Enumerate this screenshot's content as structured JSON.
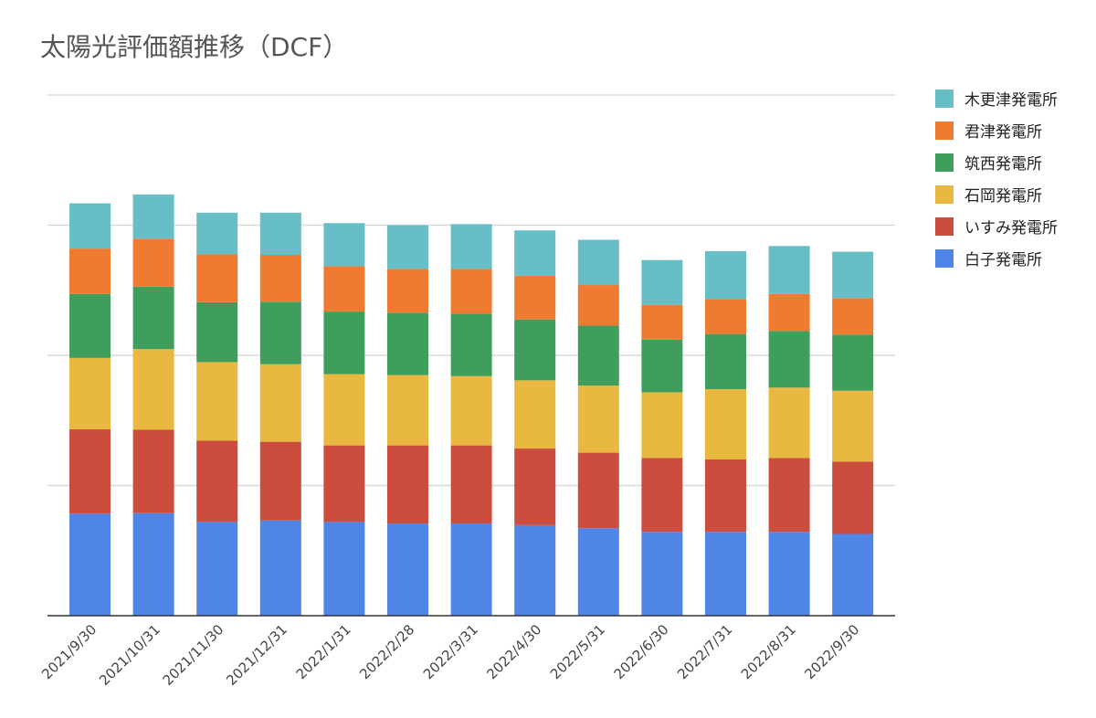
{
  "chart_data": {
    "type": "bar",
    "stacked": true,
    "title": "太陽光評価額推移（DCF）",
    "xlabel": "",
    "ylabel": "",
    "ylim": [
      0,
      100
    ],
    "grid": true,
    "legend_position": "right",
    "categories": [
      "2021/9/30",
      "2021/10/31",
      "2021/11/30",
      "2021/12/31",
      "2022/1/31",
      "2022/2/28",
      "2022/3/31",
      "2022/4/30",
      "2022/5/31",
      "2022/6/30",
      "2022/7/31",
      "2022/8/31",
      "2022/9/30"
    ],
    "series": [
      {
        "name": "白子発電所",
        "color": "#5085e8",
        "values": [
          19.6,
          19.7,
          18.0,
          18.3,
          18.0,
          17.7,
          17.7,
          17.4,
          16.8,
          16.1,
          16.1,
          16.1,
          15.7
        ]
      },
      {
        "name": "いすみ発電所",
        "color": "#cc4c3e",
        "values": [
          16.2,
          16.0,
          15.6,
          15.1,
          14.7,
          15.0,
          15.0,
          14.7,
          14.5,
          14.2,
          13.9,
          14.2,
          13.9
        ]
      },
      {
        "name": "石岡発電所",
        "color": "#e9b840",
        "values": [
          13.7,
          15.5,
          15.1,
          14.9,
          13.7,
          13.5,
          13.3,
          13.1,
          12.9,
          12.6,
          13.5,
          13.5,
          13.6
        ]
      },
      {
        "name": "筑西発電所",
        "color": "#409e5d",
        "values": [
          12.3,
          12.0,
          11.5,
          12.0,
          12.0,
          12.0,
          12.0,
          11.7,
          11.5,
          10.1,
          10.6,
          10.9,
          10.8
        ]
      },
      {
        "name": "君津発電所",
        "color": "#ef7a32",
        "values": [
          8.7,
          9.2,
          9.2,
          9.0,
          8.7,
          8.4,
          8.6,
          8.4,
          7.8,
          6.7,
          6.7,
          7.1,
          7.0
        ]
      },
      {
        "name": "木更津発電所",
        "color": "#67bec6",
        "values": [
          8.7,
          8.5,
          8.0,
          8.1,
          8.3,
          8.4,
          8.6,
          8.7,
          8.7,
          8.6,
          9.2,
          9.2,
          8.9
        ]
      }
    ]
  }
}
